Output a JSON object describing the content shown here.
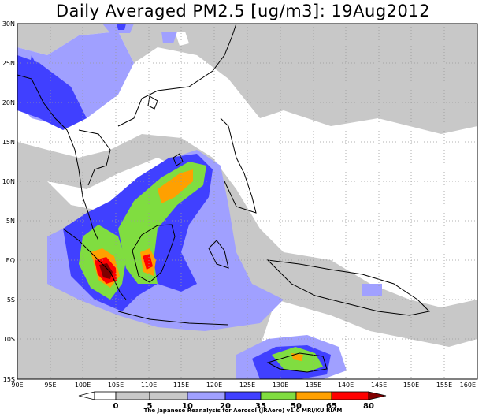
{
  "title": "Daily Averaged PM2.5 [ug/m3]: 19Aug2012",
  "credit": "The Japanese Reanalysis for Aerosol (JRAero) v1.0 MRI/KU RIAM",
  "lat_labels": [
    "30N",
    "25N",
    "20N",
    "15N",
    "10N",
    "5N",
    "EQ",
    "5S",
    "10S",
    "15S"
  ],
  "lon_labels": [
    "90E",
    "95E",
    "100E",
    "105E",
    "110E",
    "115E",
    "120E",
    "125E",
    "130E",
    "135E",
    "140E",
    "145E",
    "150E",
    "155E",
    "160E"
  ],
  "colorbar": {
    "ticks": [
      "0",
      "5",
      "10",
      "20",
      "35",
      "50",
      "65",
      "80"
    ],
    "colors": [
      "#ffffff",
      "#c8c8c8",
      "#a0a0ff",
      "#4040ff",
      "#80dd40",
      "#ffa000",
      "#ff0000",
      "#800000"
    ]
  },
  "map": {
    "lon_range": [
      90,
      160
    ],
    "lat_range": [
      -15,
      30
    ],
    "grid": "dotted"
  }
}
